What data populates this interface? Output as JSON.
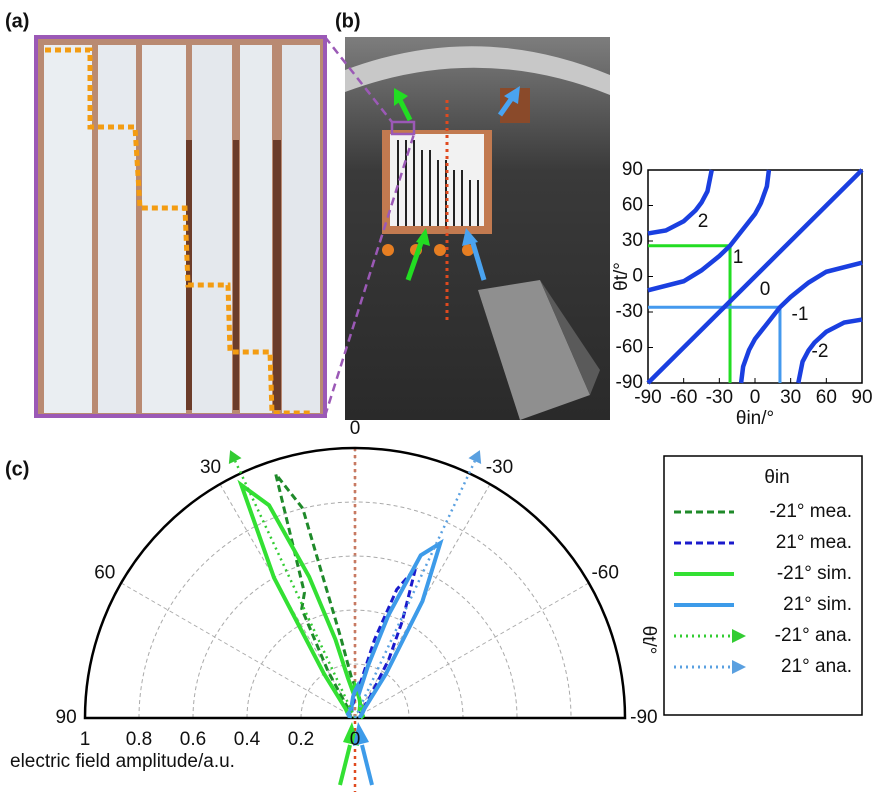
{
  "panel_labels": [
    "(a)",
    "(b)",
    "(c)"
  ],
  "chart_data": [
    {
      "type": "line",
      "xlabel": "θin/°",
      "ylabel": "θt/°",
      "xlim": [
        -90,
        90
      ],
      "ylim": [
        -90,
        90
      ],
      "xticks": [
        -90,
        -60,
        -30,
        0,
        30,
        60,
        90
      ],
      "yticks": [
        -90,
        -60,
        -30,
        0,
        30,
        60,
        90
      ],
      "series": [
        {
          "name": "0",
          "color": "#1a3fe0",
          "x": [
            -90,
            90
          ],
          "values": [
            -90,
            90
          ]
        },
        {
          "name": "1",
          "color": "#1a3fe0",
          "x": [
            -90,
            -60,
            -45,
            -30,
            -21,
            0,
            5,
            10,
            11.7
          ],
          "values": [
            -11.7,
            -4.0,
            5.2,
            17.3,
            26.0,
            52.8,
            62.1,
            76.2,
            90
          ]
        },
        {
          "name": "-1",
          "color": "#1a3fe0",
          "x": [
            -11.7,
            -10,
            -5,
            0,
            21,
            30,
            45,
            60,
            90
          ],
          "values": [
            -90,
            -76.2,
            -62.1,
            -52.8,
            -26.0,
            -17.3,
            -5.2,
            4.0,
            11.7
          ]
        },
        {
          "name": "2",
          "color": "#1a3fe0",
          "x": [
            -90,
            -75,
            -60,
            -50,
            -45,
            -40,
            -36.4
          ],
          "values": [
            36.4,
            38.9,
            46.7,
            55.9,
            62.5,
            72.0,
            90
          ]
        },
        {
          "name": "-2",
          "color": "#1a3fe0",
          "x": [
            36.4,
            40,
            45,
            50,
            60,
            75,
            90
          ],
          "values": [
            -90,
            -72.0,
            -62.5,
            -55.9,
            -46.7,
            -38.9,
            -36.4
          ]
        }
      ],
      "guides": [
        {
          "color": "#22dd22",
          "x": -21,
          "y": 26
        },
        {
          "color": "#4499ee",
          "x": 21,
          "y": -26
        }
      ]
    },
    {
      "type": "polar",
      "xlabel": "electric field amplitude/a.u.",
      "angle_label": "θt/°",
      "legend_title": "θin",
      "rlim": [
        0,
        1
      ],
      "rticks": [
        1,
        0.8,
        0.6,
        0.4,
        0.2,
        0
      ],
      "angle_ticks": [
        90,
        60,
        30,
        0,
        -30,
        -60,
        -90
      ],
      "x": [
        -90,
        -75,
        -60,
        -45,
        -35,
        -30,
        -26,
        -22,
        -18,
        -14,
        -10,
        -5,
        0,
        5,
        10,
        14,
        18,
        22,
        26,
        30,
        35,
        45,
        60,
        75,
        90
      ],
      "series": [
        {
          "name": "-21° mea.",
          "color": "#1f8a2a",
          "style": "dashed",
          "values": [
            0.02,
            0.02,
            0.03,
            0.03,
            0.04,
            0.04,
            0.04,
            0.05,
            0.06,
            0.07,
            0.08,
            0.1,
            0.12,
            0.15,
            0.3,
            0.8,
            0.95,
            0.5,
            0.45,
            0.2,
            0.05,
            0.03,
            0.02,
            0.02,
            0.02
          ]
        },
        {
          "name": "21° mea.",
          "color": "#1a1acc",
          "style": "dashed",
          "values": [
            0.02,
            0.02,
            0.03,
            0.03,
            0.1,
            0.25,
            0.4,
            0.6,
            0.5,
            0.3,
            0.15,
            0.1,
            0.08,
            0.06,
            0.05,
            0.04,
            0.04,
            0.03,
            0.03,
            0.03,
            0.03,
            0.03,
            0.02,
            0.02,
            0.02
          ]
        },
        {
          "name": "-21° sim.",
          "color": "#33e033",
          "style": "solid",
          "values": [
            0.02,
            0.03,
            0.03,
            0.04,
            0.05,
            0.05,
            0.04,
            0.05,
            0.06,
            0.07,
            0.08,
            0.1,
            0.12,
            0.1,
            0.15,
            0.3,
            0.55,
            0.85,
            0.96,
            0.6,
            0.2,
            0.05,
            0.03,
            0.02,
            0.02
          ]
        },
        {
          "name": "21° sim.",
          "color": "#3d9be9",
          "style": "solid",
          "values": [
            0.02,
            0.02,
            0.03,
            0.05,
            0.2,
            0.5,
            0.72,
            0.65,
            0.4,
            0.2,
            0.1,
            0.12,
            0.1,
            0.08,
            0.06,
            0.05,
            0.04,
            0.04,
            0.04,
            0.03,
            0.03,
            0.03,
            0.03,
            0.02,
            0.02
          ]
        },
        {
          "name": "-21° ana.",
          "color": "#33cc33",
          "style": "dotted",
          "x": [
            25
          ],
          "values": [
            1.05
          ]
        },
        {
          "name": "21° ana.",
          "color": "#5aa0e0",
          "style": "dotted",
          "x": [
            -25
          ],
          "values": [
            1.05
          ]
        }
      ]
    }
  ]
}
